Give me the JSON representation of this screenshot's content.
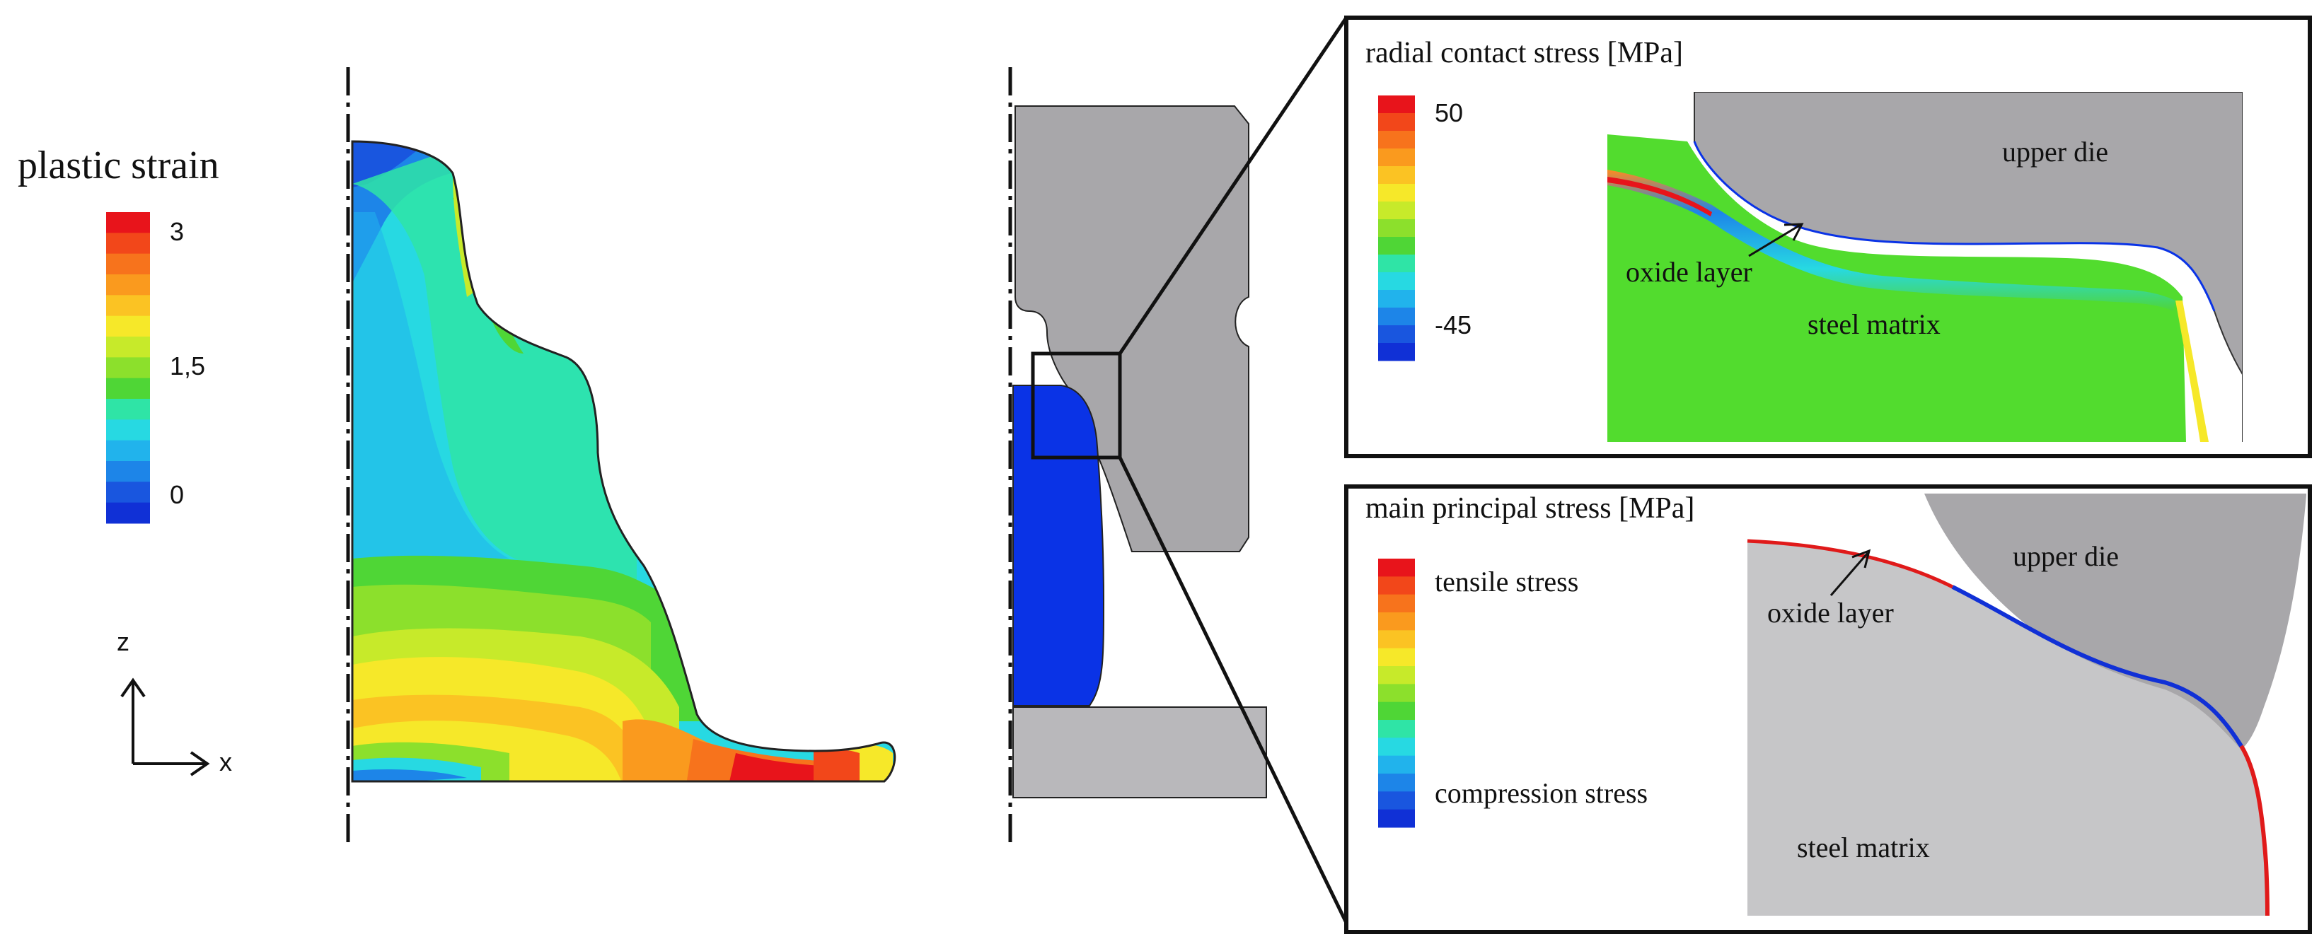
{
  "left_panel": {
    "legend_title": "plastic strain",
    "legend_ticks": [
      "3",
      "1,5",
      "0"
    ],
    "axis_z": "z",
    "axis_x": "x"
  },
  "top_inset": {
    "title": "radial contact stress [MPa]",
    "legend_max": "50",
    "legend_min": "-45",
    "label_upper_die": "upper die",
    "label_oxide": "oxide layer",
    "label_matrix": "steel matrix"
  },
  "bottom_inset": {
    "title": "main principal stress [MPa]",
    "legend_top": "tensile stress",
    "legend_bottom": "compression stress",
    "label_upper_die": "upper die",
    "label_oxide": "oxide layer",
    "label_matrix": "steel matrix"
  },
  "colors": {
    "scale": [
      "#e8141b",
      "#f2471a",
      "#f7731c",
      "#fa9a1e",
      "#fbc323",
      "#f6e829",
      "#c7ea2a",
      "#8ce02c",
      "#4fd636",
      "#2fe4a6",
      "#27d9e2",
      "#21b3ec",
      "#1d85e8",
      "#1956df",
      "#1030d6"
    ],
    "die_gray": "#a8a7aa",
    "matrix_gray": "#c6c6c8",
    "blue_workpiece": "#0a33e6"
  }
}
